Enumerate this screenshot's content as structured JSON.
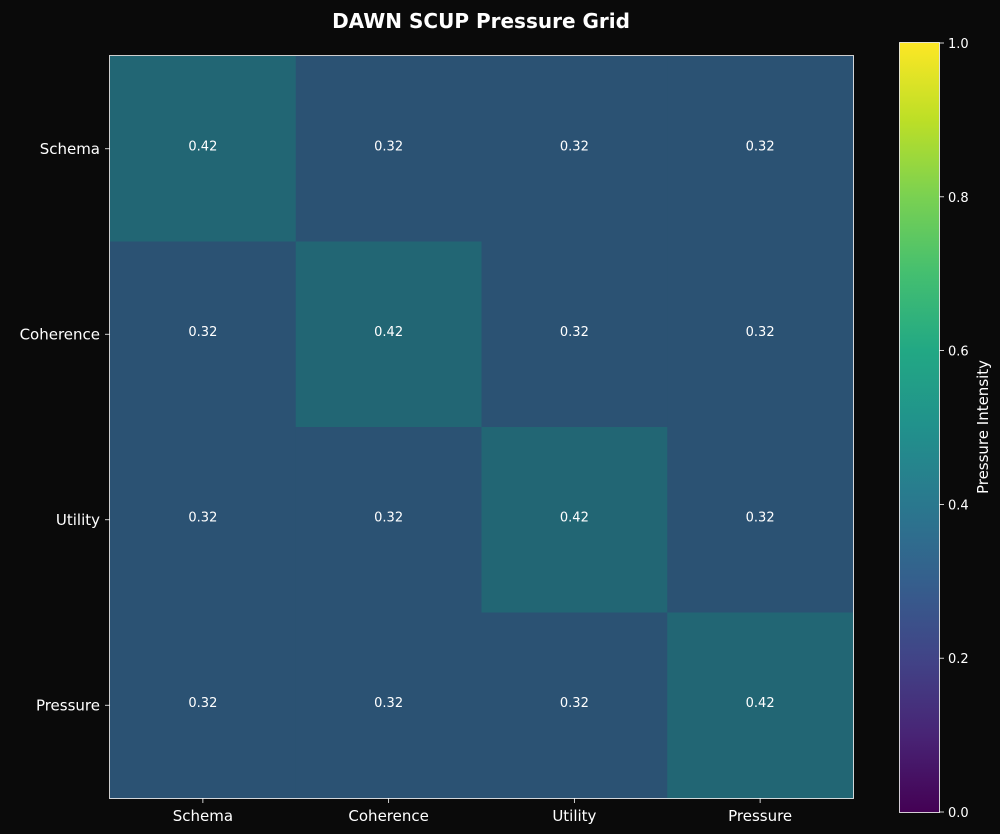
{
  "chart_data": {
    "type": "heatmap",
    "title": "DAWN SCUP Pressure Grid",
    "x_categories": [
      "Schema",
      "Coherence",
      "Utility",
      "Pressure"
    ],
    "y_categories": [
      "Schema",
      "Coherence",
      "Utility",
      "Pressure"
    ],
    "values": [
      [
        0.42,
        0.32,
        0.32,
        0.32
      ],
      [
        0.32,
        0.42,
        0.32,
        0.32
      ],
      [
        0.32,
        0.32,
        0.42,
        0.32
      ],
      [
        0.32,
        0.32,
        0.32,
        0.42
      ]
    ],
    "value_labels": [
      [
        "0.42",
        "0.32",
        "0.32",
        "0.32"
      ],
      [
        "0.32",
        "0.42",
        "0.32",
        "0.32"
      ],
      [
        "0.32",
        "0.32",
        "0.42",
        "0.32"
      ],
      [
        "0.32",
        "0.32",
        "0.32",
        "0.42"
      ]
    ],
    "colormap": "viridis",
    "cell_alpha": 0.8,
    "vmin": 0.0,
    "vmax": 1.0,
    "colorbar": {
      "label": "Pressure Intensity",
      "ticks": [
        0.0,
        0.2,
        0.4,
        0.6,
        0.8,
        1.0
      ],
      "tick_labels": [
        "0.0",
        "0.2",
        "0.4",
        "0.6",
        "0.8",
        "1.0"
      ],
      "placement": "right"
    },
    "grid": false,
    "background_color": "#0a0a0a",
    "text_color": "#ffffff"
  }
}
